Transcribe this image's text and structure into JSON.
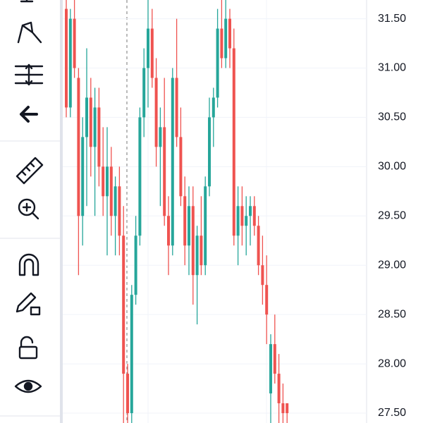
{
  "chart_data": {
    "type": "candlestick",
    "up_color": "#26a69a",
    "down_color": "#ef5350",
    "ylim": [
      27.4,
      31.69
    ],
    "yticks": [
      {
        "value": 31.5,
        "label": "31.50"
      },
      {
        "value": 31,
        "label": "31.00"
      },
      {
        "value": 30.5,
        "label": "30.50"
      },
      {
        "value": 30,
        "label": "30.00"
      },
      {
        "value": 29.5,
        "label": "29.50"
      },
      {
        "value": 29,
        "label": "29.00"
      },
      {
        "value": 28.5,
        "label": "28.50"
      },
      {
        "value": 28,
        "label": "28.00"
      },
      {
        "value": 27.5,
        "label": "27.50"
      }
    ],
    "grid": true,
    "open": [
      31.6,
      30.6,
      31.5,
      30.9,
      29.5,
      30.3,
      30.7,
      30.2,
      30.6,
      30.0,
      29.7,
      30.0,
      29.5,
      29.8,
      29.3,
      27.9,
      27.5,
      28.7,
      29.3,
      30.5,
      31.0,
      31.4,
      30.9,
      30.2,
      30.4,
      29.5,
      29.2,
      30.9,
      30.3,
      29.7,
      29.2,
      29.6,
      28.9,
      29.3,
      29.0,
      29.8,
      30.5,
      30.7,
      31.4,
      31.1,
      31.5,
      31.2,
      29.3,
      29.6,
      29.4,
      29.5,
      29.6,
      29.4,
      29.0,
      28.8,
      27.7,
      28.2,
      27.9,
      27.6,
      27.6
    ],
    "high": [
      31.7,
      31.6,
      31.7,
      31.0,
      30.5,
      31.2,
      30.9,
      30.8,
      30.8,
      30.4,
      30.4,
      30.2,
      29.9,
      30.0,
      29.6,
      28.0,
      28.8,
      29.5,
      30.6,
      31.2,
      31.7,
      31.6,
      31.1,
      30.6,
      30.9,
      29.7,
      31.0,
      31.5,
      30.6,
      29.9,
      29.8,
      29.8,
      29.4,
      29.7,
      29.9,
      30.7,
      30.8,
      31.6,
      31.7,
      31.7,
      31.6,
      31.4,
      29.8,
      29.8,
      29.7,
      29.7,
      29.7,
      29.5,
      29.3,
      29.1,
      28.3,
      28.5,
      28.1,
      27.8,
      27.6
    ],
    "low": [
      30.5,
      30.5,
      30.9,
      28.9,
      29.2,
      29.6,
      29.9,
      29.5,
      29.8,
      29.5,
      29.1,
      29.3,
      29.1,
      29.1,
      27.4,
      27.4,
      27.4,
      28.6,
      29.2,
      30.3,
      30.6,
      30.8,
      30.0,
      29.6,
      29.4,
      28.9,
      29.1,
      30.2,
      29.6,
      29.0,
      28.9,
      28.6,
      28.4,
      28.9,
      28.9,
      29.7,
      30.2,
      30.6,
      31.0,
      31.0,
      31.0,
      29.2,
      29.0,
      29.2,
      29.1,
      29.2,
      29.3,
      28.9,
      28.6,
      28.2,
      27.4,
      27.8,
      27.4,
      27.4,
      27.4
    ],
    "close": [
      30.6,
      31.5,
      31.0,
      29.5,
      30.3,
      30.7,
      30.2,
      30.6,
      30.0,
      29.7,
      30.0,
      29.5,
      29.8,
      29.3,
      27.9,
      27.5,
      28.7,
      29.3,
      30.5,
      31.0,
      31.4,
      30.9,
      30.2,
      30.4,
      29.5,
      29.2,
      30.9,
      30.3,
      29.7,
      29.2,
      29.6,
      28.9,
      29.3,
      29.0,
      29.8,
      30.5,
      30.7,
      31.4,
      31.1,
      31.5,
      31.2,
      29.3,
      29.6,
      29.4,
      29.5,
      29.6,
      29.4,
      29.0,
      28.8,
      28.5,
      28.2,
      27.9,
      27.6,
      27.5,
      27.5
    ]
  }
}
